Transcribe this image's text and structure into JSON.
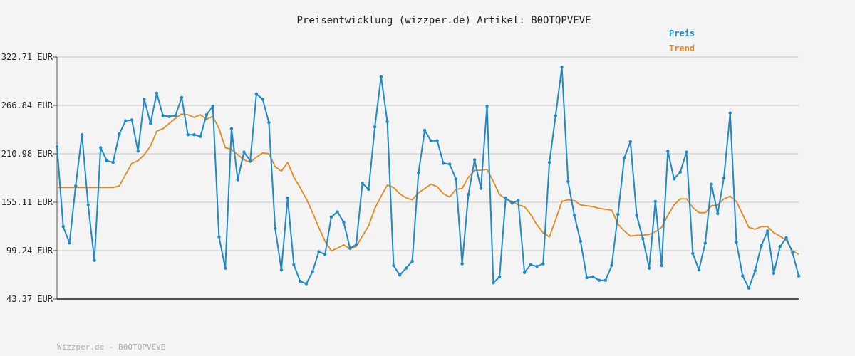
{
  "chart_data": {
    "type": "line",
    "title": "Preisentwicklung (wizzper.de) Artikel: B0OTQPVEVE",
    "footer": "Wizzper.de - B0OTQPVEVE",
    "xlabel": "",
    "ylabel": "",
    "ylim": [
      43.37,
      322.71
    ],
    "yticks": [
      "43.37 EUR",
      "99.24 EUR",
      "155.11 EUR",
      "210.98 EUR",
      "266.84 EUR",
      "322.71 EUR"
    ],
    "ytick_values": [
      43.37,
      99.24,
      155.11,
      210.98,
      266.84,
      322.71
    ],
    "grid": true,
    "legend_position": "top-right",
    "colors": {
      "Preis": "#1e88c9",
      "Trend": "#e08a1e"
    },
    "series": [
      {
        "name": "Preis",
        "values": [
          219,
          127,
          108,
          174,
          233,
          152,
          88,
          218,
          203,
          201,
          234,
          249,
          250,
          214,
          274,
          246,
          281,
          255,
          254,
          255,
          276,
          233,
          233,
          231,
          256,
          266,
          115,
          79,
          240,
          181,
          213,
          203,
          280,
          274,
          247,
          125,
          77,
          160,
          83,
          64,
          61,
          75,
          98,
          95,
          138,
          144,
          132,
          102,
          106,
          177,
          170,
          242,
          300,
          248,
          82,
          71,
          79,
          87,
          189,
          238,
          226,
          226,
          200,
          199,
          182,
          84,
          164,
          204,
          171,
          266,
          62,
          69,
          160,
          154,
          157,
          74,
          83,
          81,
          84,
          201,
          255,
          311,
          179,
          140,
          110,
          68,
          69,
          65,
          65,
          82,
          141,
          206,
          225,
          140,
          113,
          79,
          156,
          82,
          214,
          182,
          190,
          213,
          96,
          77,
          108,
          176,
          142,
          183,
          258,
          109,
          70,
          56,
          76,
          105,
          122,
          73,
          104,
          114,
          97,
          70
        ],
        "markers": true
      },
      {
        "name": "Trend",
        "values": [
          172,
          172,
          172,
          172,
          172,
          172,
          172,
          172,
          172,
          172,
          174,
          187,
          200,
          203,
          210,
          220,
          237,
          240,
          246,
          252,
          257,
          256,
          253,
          256,
          251,
          254,
          240,
          218,
          216,
          210,
          204,
          201,
          207,
          212,
          211,
          196,
          191,
          201,
          184,
          172,
          159,
          143,
          126,
          110,
          99,
          102,
          106,
          101,
          104,
          116,
          128,
          148,
          162,
          175,
          172,
          165,
          160,
          158,
          166,
          171,
          176,
          173,
          165,
          161,
          170,
          171,
          184,
          192,
          192,
          193,
          179,
          164,
          159,
          156,
          152,
          150,
          141,
          129,
          120,
          115,
          135,
          156,
          158,
          157,
          152,
          151,
          150,
          148,
          147,
          146,
          130,
          122,
          116,
          117,
          117,
          118,
          121,
          126,
          140,
          152,
          159,
          159,
          149,
          143,
          143,
          151,
          152,
          159,
          162,
          156,
          141,
          126,
          124,
          127,
          127,
          120,
          116,
          111,
          99,
          95
        ],
        "markers": false
      }
    ]
  }
}
